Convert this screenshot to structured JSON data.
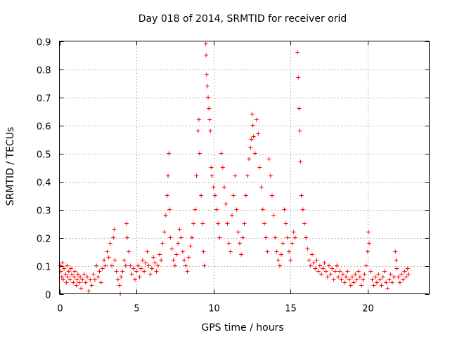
{
  "chart_data": {
    "type": "scatter",
    "title": "Day 018 of 2014, SRMTID for receiver orid",
    "xlabel": "GPS time / hours",
    "ylabel": "SRMTID / TECUs",
    "xlim": [
      0,
      24
    ],
    "ylim": [
      0,
      0.9
    ],
    "xticks": [
      "0",
      "5",
      "10",
      "15",
      "20"
    ],
    "yticks": [
      "0",
      "0.1",
      "0.2",
      "0.3",
      "0.4",
      "0.5",
      "0.6",
      "0.7",
      "0.8",
      "0.9"
    ],
    "grid": true,
    "marker": "+",
    "color": "#ff0000",
    "series": [
      {
        "name": "SRMTID",
        "points": [
          [
            0.05,
            0.1
          ],
          [
            0.1,
            0.08
          ],
          [
            0.15,
            0.06
          ],
          [
            0.2,
            0.11
          ],
          [
            0.25,
            0.05
          ],
          [
            0.3,
            0.09
          ],
          [
            0.4,
            0.07
          ],
          [
            0.45,
            0.04
          ],
          [
            0.5,
            0.1
          ],
          [
            0.55,
            0.06
          ],
          [
            0.6,
            0.08
          ],
          [
            0.7,
            0.05
          ],
          [
            0.75,
            0.09
          ],
          [
            0.8,
            0.07
          ],
          [
            0.9,
            0.04
          ],
          [
            0.95,
            0.06
          ],
          [
            1.0,
            0.08
          ],
          [
            1.1,
            0.03
          ],
          [
            1.15,
            0.05
          ],
          [
            1.2,
            0.07
          ],
          [
            1.3,
            0.04
          ],
          [
            1.35,
            0.06
          ],
          [
            1.4,
            0.02
          ],
          [
            1.5,
            0.05
          ],
          [
            1.6,
            0.07
          ],
          [
            1.7,
            0.04
          ],
          [
            1.8,
            0.06
          ],
          [
            1.9,
            0.01
          ],
          [
            2.0,
            0.05
          ],
          [
            2.1,
            0.03
          ],
          [
            2.2,
            0.07
          ],
          [
            2.3,
            0.05
          ],
          [
            2.4,
            0.1
          ],
          [
            2.5,
            0.06
          ],
          [
            2.6,
            0.08
          ],
          [
            2.7,
            0.04
          ],
          [
            2.8,
            0.09
          ],
          [
            2.9,
            0.12
          ],
          [
            3.0,
            0.1
          ],
          [
            3.1,
            0.15
          ],
          [
            3.2,
            0.13
          ],
          [
            3.3,
            0.18
          ],
          [
            3.4,
            0.1
          ],
          [
            3.5,
            0.2
          ],
          [
            3.55,
            0.23
          ],
          [
            3.6,
            0.12
          ],
          [
            3.7,
            0.08
          ],
          [
            3.8,
            0.05
          ],
          [
            3.9,
            0.03
          ],
          [
            3.95,
            0.0
          ],
          [
            4.0,
            0.06
          ],
          [
            4.1,
            0.08
          ],
          [
            4.2,
            0.12
          ],
          [
            4.3,
            0.1
          ],
          [
            4.35,
            0.25
          ],
          [
            4.4,
            0.2
          ],
          [
            4.5,
            0.15
          ],
          [
            4.6,
            0.1
          ],
          [
            4.7,
            0.07
          ],
          [
            4.8,
            0.09
          ],
          [
            4.9,
            0.05
          ],
          [
            5.0,
            0.08
          ],
          [
            5.1,
            0.1
          ],
          [
            5.2,
            0.06
          ],
          [
            5.3,
            0.09
          ],
          [
            5.4,
            0.12
          ],
          [
            5.5,
            0.08
          ],
          [
            5.6,
            0.11
          ],
          [
            5.7,
            0.15
          ],
          [
            5.8,
            0.1
          ],
          [
            5.9,
            0.07
          ],
          [
            6.0,
            0.09
          ],
          [
            6.1,
            0.13
          ],
          [
            6.2,
            0.11
          ],
          [
            6.3,
            0.08
          ],
          [
            6.4,
            0.1
          ],
          [
            6.5,
            0.14
          ],
          [
            6.6,
            0.12
          ],
          [
            6.7,
            0.18
          ],
          [
            6.8,
            0.22
          ],
          [
            6.9,
            0.28
          ],
          [
            7.0,
            0.35
          ],
          [
            7.05,
            0.42
          ],
          [
            7.1,
            0.5
          ],
          [
            7.15,
            0.3
          ],
          [
            7.2,
            0.2
          ],
          [
            7.3,
            0.16
          ],
          [
            7.4,
            0.12
          ],
          [
            7.5,
            0.1
          ],
          [
            7.6,
            0.14
          ],
          [
            7.7,
            0.18
          ],
          [
            7.8,
            0.23
          ],
          [
            7.9,
            0.2
          ],
          [
            8.0,
            0.15
          ],
          [
            8.1,
            0.12
          ],
          [
            8.2,
            0.1
          ],
          [
            8.3,
            0.08
          ],
          [
            8.4,
            0.13
          ],
          [
            8.5,
            0.17
          ],
          [
            8.6,
            0.2
          ],
          [
            8.7,
            0.25
          ],
          [
            8.8,
            0.3
          ],
          [
            8.9,
            0.42
          ],
          [
            9.0,
            0.58
          ],
          [
            9.05,
            0.62
          ],
          [
            9.1,
            0.5
          ],
          [
            9.2,
            0.35
          ],
          [
            9.3,
            0.25
          ],
          [
            9.35,
            0.15
          ],
          [
            9.4,
            0.1
          ],
          [
            9.5,
            0.89
          ],
          [
            9.52,
            0.85
          ],
          [
            9.55,
            0.78
          ],
          [
            9.6,
            0.74
          ],
          [
            9.65,
            0.7
          ],
          [
            9.7,
            0.66
          ],
          [
            9.75,
            0.62
          ],
          [
            9.8,
            0.58
          ],
          [
            9.85,
            0.45
          ],
          [
            9.9,
            0.42
          ],
          [
            10.0,
            0.38
          ],
          [
            10.1,
            0.35
          ],
          [
            10.2,
            0.3
          ],
          [
            10.3,
            0.25
          ],
          [
            10.4,
            0.2
          ],
          [
            10.5,
            0.5
          ],
          [
            10.6,
            0.45
          ],
          [
            10.7,
            0.38
          ],
          [
            10.8,
            0.32
          ],
          [
            10.9,
            0.25
          ],
          [
            11.0,
            0.18
          ],
          [
            11.1,
            0.15
          ],
          [
            11.2,
            0.28
          ],
          [
            11.3,
            0.35
          ],
          [
            11.4,
            0.42
          ],
          [
            11.5,
            0.3
          ],
          [
            11.6,
            0.22
          ],
          [
            11.7,
            0.18
          ],
          [
            11.8,
            0.14
          ],
          [
            11.9,
            0.2
          ],
          [
            12.0,
            0.25
          ],
          [
            12.1,
            0.35
          ],
          [
            12.2,
            0.42
          ],
          [
            12.3,
            0.48
          ],
          [
            12.4,
            0.52
          ],
          [
            12.45,
            0.55
          ],
          [
            12.5,
            0.64
          ],
          [
            12.55,
            0.6
          ],
          [
            12.6,
            0.56
          ],
          [
            12.7,
            0.5
          ],
          [
            12.8,
            0.62
          ],
          [
            12.9,
            0.57
          ],
          [
            13.0,
            0.45
          ],
          [
            13.1,
            0.38
          ],
          [
            13.2,
            0.3
          ],
          [
            13.3,
            0.25
          ],
          [
            13.4,
            0.2
          ],
          [
            13.5,
            0.15
          ],
          [
            13.6,
            0.48
          ],
          [
            13.7,
            0.42
          ],
          [
            13.8,
            0.35
          ],
          [
            13.9,
            0.28
          ],
          [
            14.0,
            0.2
          ],
          [
            14.1,
            0.15
          ],
          [
            14.2,
            0.12
          ],
          [
            14.3,
            0.1
          ],
          [
            14.4,
            0.14
          ],
          [
            14.5,
            0.18
          ],
          [
            14.6,
            0.3
          ],
          [
            14.7,
            0.25
          ],
          [
            14.8,
            0.2
          ],
          [
            14.9,
            0.15
          ],
          [
            15.0,
            0.12
          ],
          [
            15.1,
            0.18
          ],
          [
            15.2,
            0.22
          ],
          [
            15.3,
            0.2
          ],
          [
            15.45,
            0.86
          ],
          [
            15.5,
            0.77
          ],
          [
            15.55,
            0.66
          ],
          [
            15.6,
            0.58
          ],
          [
            15.65,
            0.47
          ],
          [
            15.7,
            0.35
          ],
          [
            15.8,
            0.3
          ],
          [
            15.9,
            0.25
          ],
          [
            16.0,
            0.2
          ],
          [
            16.1,
            0.16
          ],
          [
            16.2,
            0.12
          ],
          [
            16.3,
            0.1
          ],
          [
            16.4,
            0.14
          ],
          [
            16.5,
            0.11
          ],
          [
            16.6,
            0.09
          ],
          [
            16.7,
            0.12
          ],
          [
            16.8,
            0.08
          ],
          [
            16.9,
            0.1
          ],
          [
            17.0,
            0.07
          ],
          [
            17.1,
            0.09
          ],
          [
            17.2,
            0.11
          ],
          [
            17.3,
            0.08
          ],
          [
            17.4,
            0.06
          ],
          [
            17.5,
            0.1
          ],
          [
            17.6,
            0.07
          ],
          [
            17.7,
            0.09
          ],
          [
            17.8,
            0.05
          ],
          [
            17.9,
            0.08
          ],
          [
            18.0,
            0.1
          ],
          [
            18.1,
            0.06
          ],
          [
            18.2,
            0.08
          ],
          [
            18.3,
            0.05
          ],
          [
            18.4,
            0.07
          ],
          [
            18.5,
            0.04
          ],
          [
            18.6,
            0.06
          ],
          [
            18.7,
            0.08
          ],
          [
            18.8,
            0.05
          ],
          [
            18.9,
            0.03
          ],
          [
            19.0,
            0.06
          ],
          [
            19.1,
            0.04
          ],
          [
            19.2,
            0.07
          ],
          [
            19.3,
            0.05
          ],
          [
            19.4,
            0.08
          ],
          [
            19.5,
            0.06
          ],
          [
            19.6,
            0.03
          ],
          [
            19.7,
            0.05
          ],
          [
            19.8,
            0.07
          ],
          [
            19.9,
            0.1
          ],
          [
            20.0,
            0.15
          ],
          [
            20.05,
            0.22
          ],
          [
            20.1,
            0.18
          ],
          [
            20.2,
            0.08
          ],
          [
            20.3,
            0.05
          ],
          [
            20.4,
            0.03
          ],
          [
            20.5,
            0.06
          ],
          [
            20.6,
            0.04
          ],
          [
            20.7,
            0.07
          ],
          [
            20.8,
            0.05
          ],
          [
            20.9,
            0.03
          ],
          [
            21.0,
            0.06
          ],
          [
            21.1,
            0.08
          ],
          [
            21.2,
            0.04
          ],
          [
            21.3,
            0.02
          ],
          [
            21.4,
            0.05
          ],
          [
            21.5,
            0.07
          ],
          [
            21.6,
            0.04
          ],
          [
            21.7,
            0.06
          ],
          [
            21.8,
            0.15
          ],
          [
            21.85,
            0.12
          ],
          [
            21.9,
            0.09
          ],
          [
            22.0,
            0.06
          ],
          [
            22.1,
            0.04
          ],
          [
            22.2,
            0.07
          ],
          [
            22.3,
            0.05
          ],
          [
            22.4,
            0.08
          ],
          [
            22.5,
            0.06
          ],
          [
            22.6,
            0.09
          ],
          [
            22.65,
            0.07
          ]
        ]
      }
    ]
  }
}
